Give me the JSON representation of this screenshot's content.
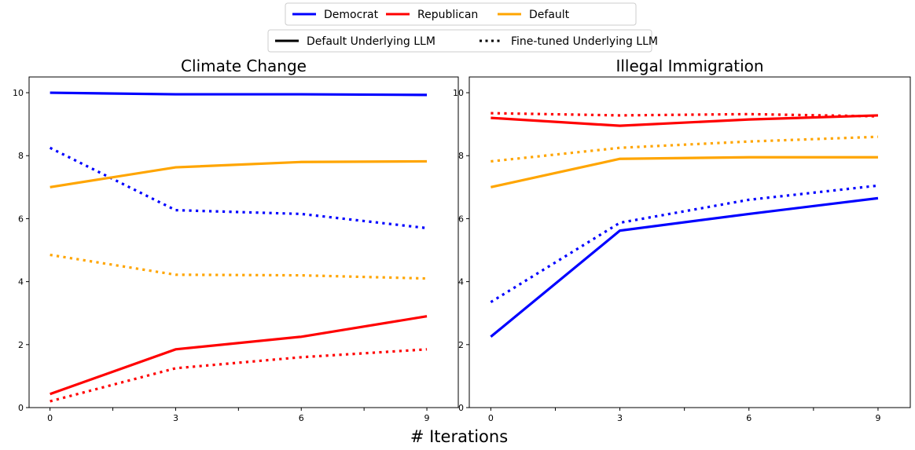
{
  "legend_party": [
    {
      "label": "Democrat",
      "color": "#0000ff"
    },
    {
      "label": "Republican",
      "color": "#ff0000"
    },
    {
      "label": "Default",
      "color": "#ffa500"
    }
  ],
  "legend_style": [
    {
      "label": "Default Underlying LLM",
      "style": "solid"
    },
    {
      "label": "Fine-tuned Underlying LLM",
      "style": "dotted"
    }
  ],
  "xlabel": "# Iterations",
  "chart_data": [
    {
      "type": "line",
      "title": "Climate Change",
      "x": [
        0,
        3,
        6,
        9
      ],
      "xticks": [
        "0",
        "3",
        "6",
        "9"
      ],
      "yticks": [
        "0",
        "2",
        "4",
        "6",
        "8",
        "10"
      ],
      "xlim": [
        -0.5,
        9.75
      ],
      "ylim": [
        0,
        10.5
      ],
      "series": [
        {
          "party": "Democrat",
          "style": "solid",
          "color": "#0000ff",
          "values": [
            10.0,
            9.95,
            9.95,
            9.93
          ]
        },
        {
          "party": "Democrat",
          "style": "dotted",
          "color": "#0000ff",
          "values": [
            8.25,
            6.27,
            6.15,
            5.7
          ]
        },
        {
          "party": "Default",
          "style": "solid",
          "color": "#ffa500",
          "values": [
            7.0,
            7.63,
            7.8,
            7.82
          ]
        },
        {
          "party": "Default",
          "style": "dotted",
          "color": "#ffa500",
          "values": [
            4.85,
            4.22,
            4.2,
            4.1
          ]
        },
        {
          "party": "Republican",
          "style": "solid",
          "color": "#ff0000",
          "values": [
            0.43,
            1.85,
            2.25,
            2.9
          ]
        },
        {
          "party": "Republican",
          "style": "dotted",
          "color": "#ff0000",
          "values": [
            0.2,
            1.25,
            1.6,
            1.85
          ]
        }
      ]
    },
    {
      "type": "line",
      "title": "Illegal Immigration",
      "x": [
        0,
        3,
        6,
        9
      ],
      "xticks": [
        "0",
        "3",
        "6",
        "9"
      ],
      "yticks": [
        "0",
        "2",
        "4",
        "6",
        "8",
        "10"
      ],
      "xlim": [
        -0.5,
        9.75
      ],
      "ylim": [
        0,
        10.5
      ],
      "series": [
        {
          "party": "Republican",
          "style": "solid",
          "color": "#ff0000",
          "values": [
            9.2,
            8.95,
            9.15,
            9.28
          ]
        },
        {
          "party": "Republican",
          "style": "dotted",
          "color": "#ff0000",
          "values": [
            9.35,
            9.28,
            9.32,
            9.25
          ]
        },
        {
          "party": "Default",
          "style": "dotted",
          "color": "#ffa500",
          "values": [
            7.82,
            8.25,
            8.45,
            8.6
          ]
        },
        {
          "party": "Default",
          "style": "solid",
          "color": "#ffa500",
          "values": [
            7.0,
            7.9,
            7.95,
            7.95
          ]
        },
        {
          "party": "Democrat",
          "style": "dotted",
          "color": "#0000ff",
          "values": [
            3.35,
            5.87,
            6.6,
            7.05
          ]
        },
        {
          "party": "Democrat",
          "style": "solid",
          "color": "#0000ff",
          "values": [
            2.25,
            5.62,
            6.15,
            6.65
          ]
        }
      ]
    }
  ]
}
